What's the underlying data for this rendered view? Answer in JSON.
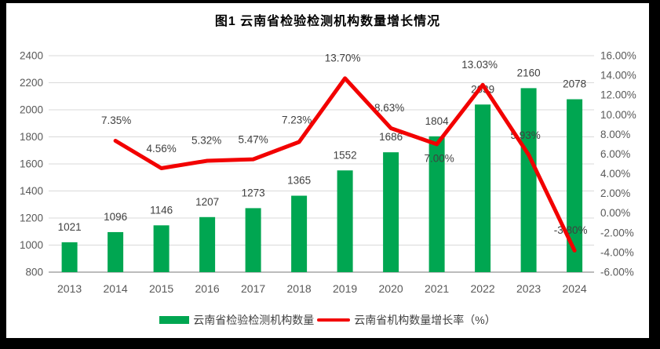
{
  "title": "图1 云南省检验检测机构数量增长情况",
  "legend": {
    "bars": "云南省检验检测机构数量",
    "line": "云南省机构数量增长率（%）"
  },
  "colors": {
    "bar": "#00A651",
    "line": "#F20000",
    "grid": "#D9D9D9",
    "axis_line": "#A6A6A6",
    "tick_text": "#595959",
    "label_text": "#404040",
    "frame_bg": "#FFFFFF",
    "border_bg": "#000000"
  },
  "chart_data": {
    "type": "bar",
    "subtype": "combo bar+line, dual axis",
    "title": "图1 云南省检验检测机构数量增长情况",
    "categories": [
      "2013",
      "2014",
      "2015",
      "2016",
      "2017",
      "2018",
      "2019",
      "2020",
      "2021",
      "2022",
      "2023",
      "2024"
    ],
    "series": [
      {
        "name": "云南省检验检测机构数量",
        "type": "bar",
        "axis": "left",
        "values": [
          1021,
          1096,
          1146,
          1207,
          1273,
          1365,
          1552,
          1686,
          1804,
          2039,
          2160,
          2078
        ],
        "labels": [
          "1021",
          "1096",
          "1146",
          "1207",
          "1273",
          "1365",
          "1552",
          "1686",
          "1804",
          "2039",
          "2160",
          "2078"
        ]
      },
      {
        "name": "云南省机构数量增长率（%）",
        "type": "line",
        "axis": "right",
        "values": [
          null,
          7.35,
          4.56,
          5.32,
          5.47,
          7.23,
          13.7,
          8.63,
          7.0,
          13.03,
          5.93,
          -3.8
        ],
        "labels": [
          "",
          "7.35%",
          "4.56%",
          "5.32%",
          "5.47%",
          "7.23%",
          "13.70%",
          "8.63%",
          "7.00%",
          "13.03%",
          "5.93%",
          "-3.80%"
        ]
      }
    ],
    "left_axis": {
      "min": 800,
      "max": 2400,
      "step": 200,
      "ticks": [
        "2400",
        "2200",
        "2000",
        "1800",
        "1600",
        "1400",
        "1200",
        "1000",
        "800"
      ]
    },
    "right_axis": {
      "min": -6,
      "max": 16,
      "step": 2,
      "ticks": [
        "16.00%",
        "14.00%",
        "12.00%",
        "10.00%",
        "8.00%",
        "6.00%",
        "4.00%",
        "2.00%",
        "0.00%",
        "-2.00%",
        "-4.00%",
        "-6.00%"
      ]
    },
    "grid": true,
    "legend_position": "bottom"
  }
}
